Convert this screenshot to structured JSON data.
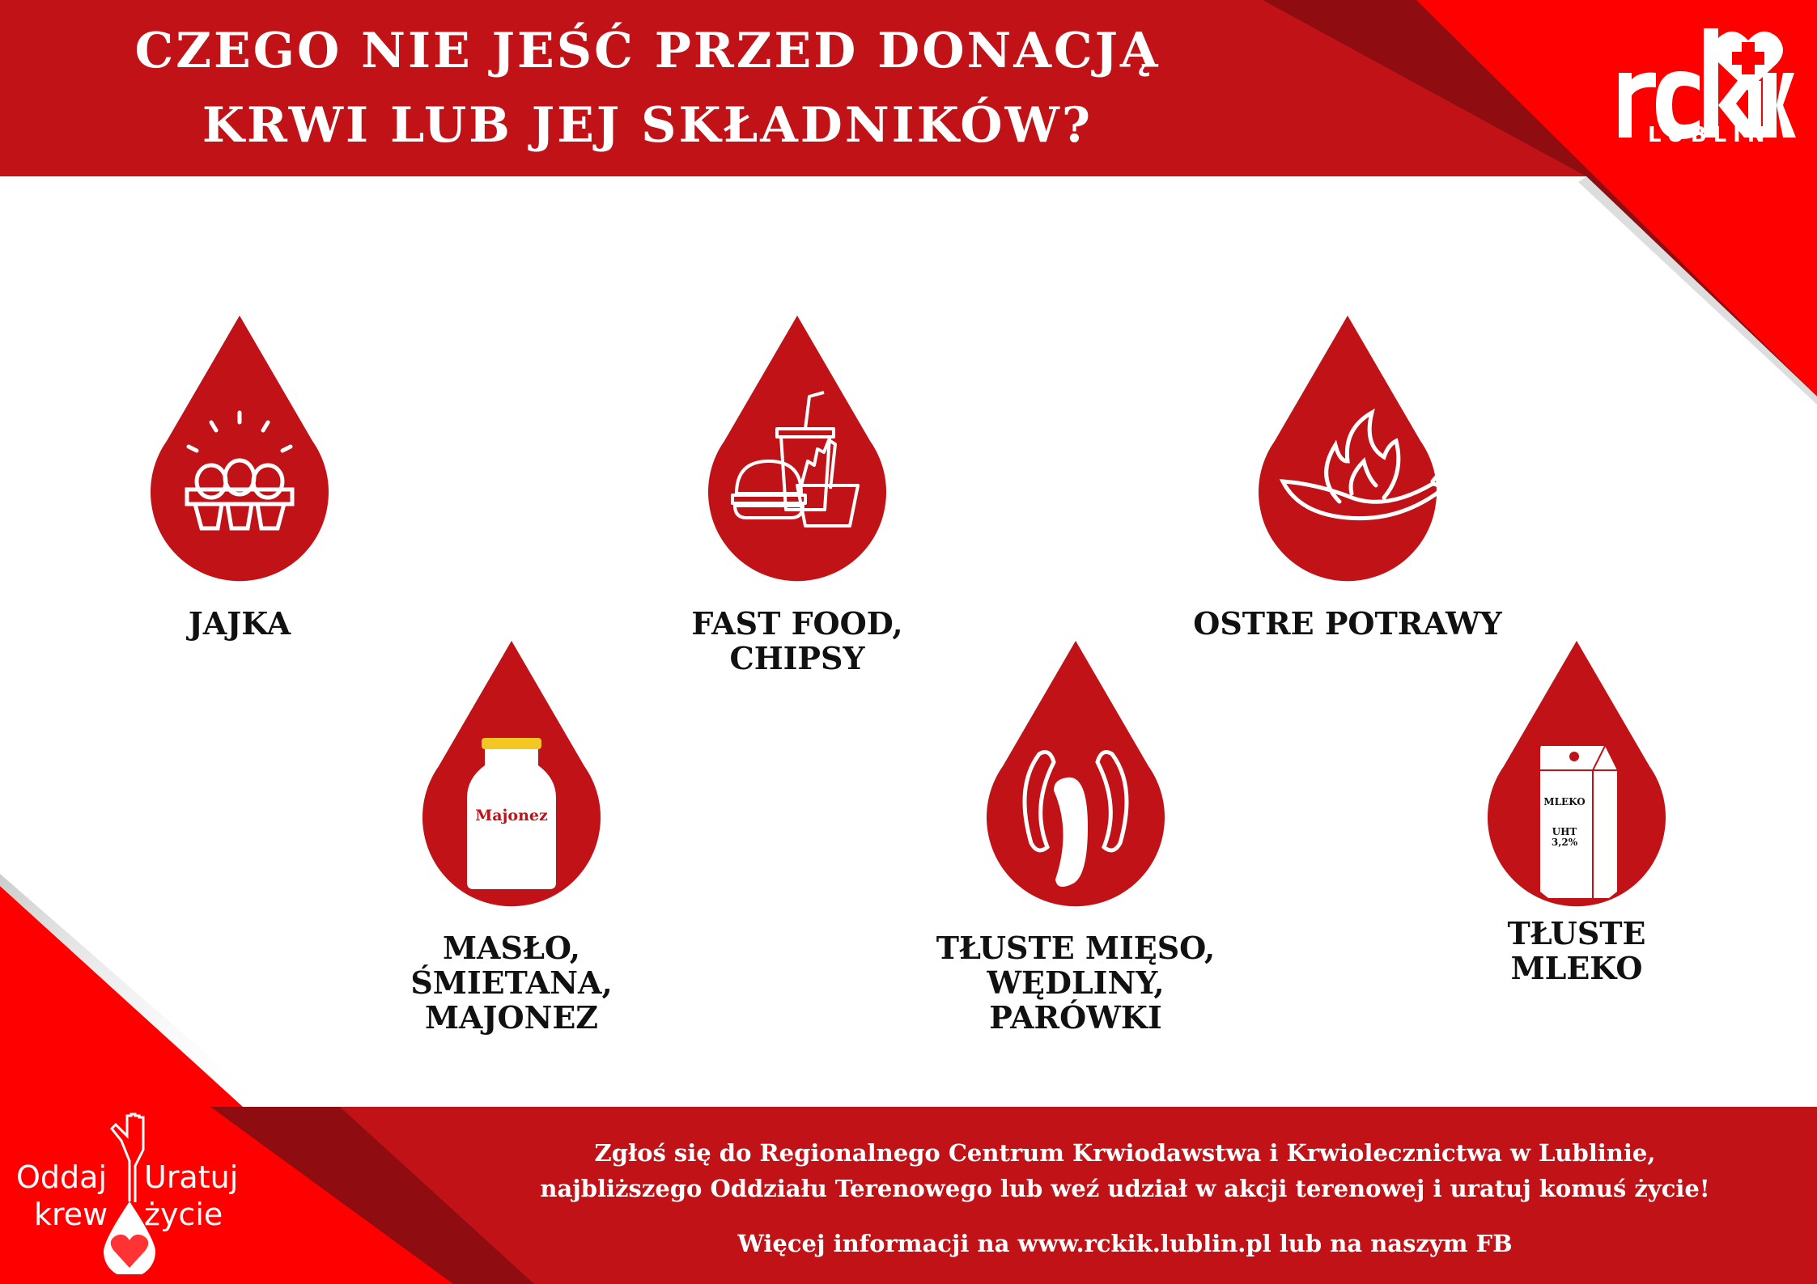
{
  "header": {
    "title_line1": "CZEGO NIE JEŚĆ PRZED DONACJĄ",
    "title_line2": "KRWI LUB JEJ SKŁADNIKÓW?"
  },
  "logo": {
    "text": "rckik",
    "subtitle": "LUBLIN"
  },
  "items": [
    {
      "icon": "eggs-carton-icon",
      "lines": [
        "JAJKA"
      ]
    },
    {
      "icon": "fast-food-icon",
      "lines": [
        "FAST FOOD,",
        "CHIPSY"
      ]
    },
    {
      "icon": "chili-fire-icon",
      "lines": [
        "OSTRE POTRAWY"
      ]
    },
    {
      "icon": "mayonnaise-jar-icon",
      "jar_label": "Majonez",
      "lines": [
        "MASŁO,",
        "ŚMIETANA,",
        "MAJONEZ"
      ]
    },
    {
      "icon": "sausages-icon",
      "lines": [
        "TŁUSTE MIĘSO,",
        "WĘDLINY,",
        "PARÓWKI"
      ]
    },
    {
      "icon": "milk-carton-icon",
      "carton_label": "MLEKO",
      "carton_sub1": "UHT",
      "carton_sub2": "3,2%",
      "lines": [
        "TŁUSTE",
        "MLEKO"
      ]
    }
  ],
  "footer": {
    "line1": "Zgłoś się do Regionalnego Centrum Krwiodawstwa i Krwiolecznictwa w Lublinie,",
    "line2": "najbliższego Oddziału Terenowego lub weź udział w akcji terenowej i uratuj komuś życie!",
    "line3": "Więcej informacji na www.rckik.lublin.pl lub na naszym FB"
  },
  "campaign": {
    "w1": "Oddaj",
    "w2": "krew",
    "w3": "Uratuj",
    "w4": "życie"
  },
  "colors": {
    "dark_red": "#c01217",
    "bright_red": "#ff0000",
    "text": "#111111"
  }
}
